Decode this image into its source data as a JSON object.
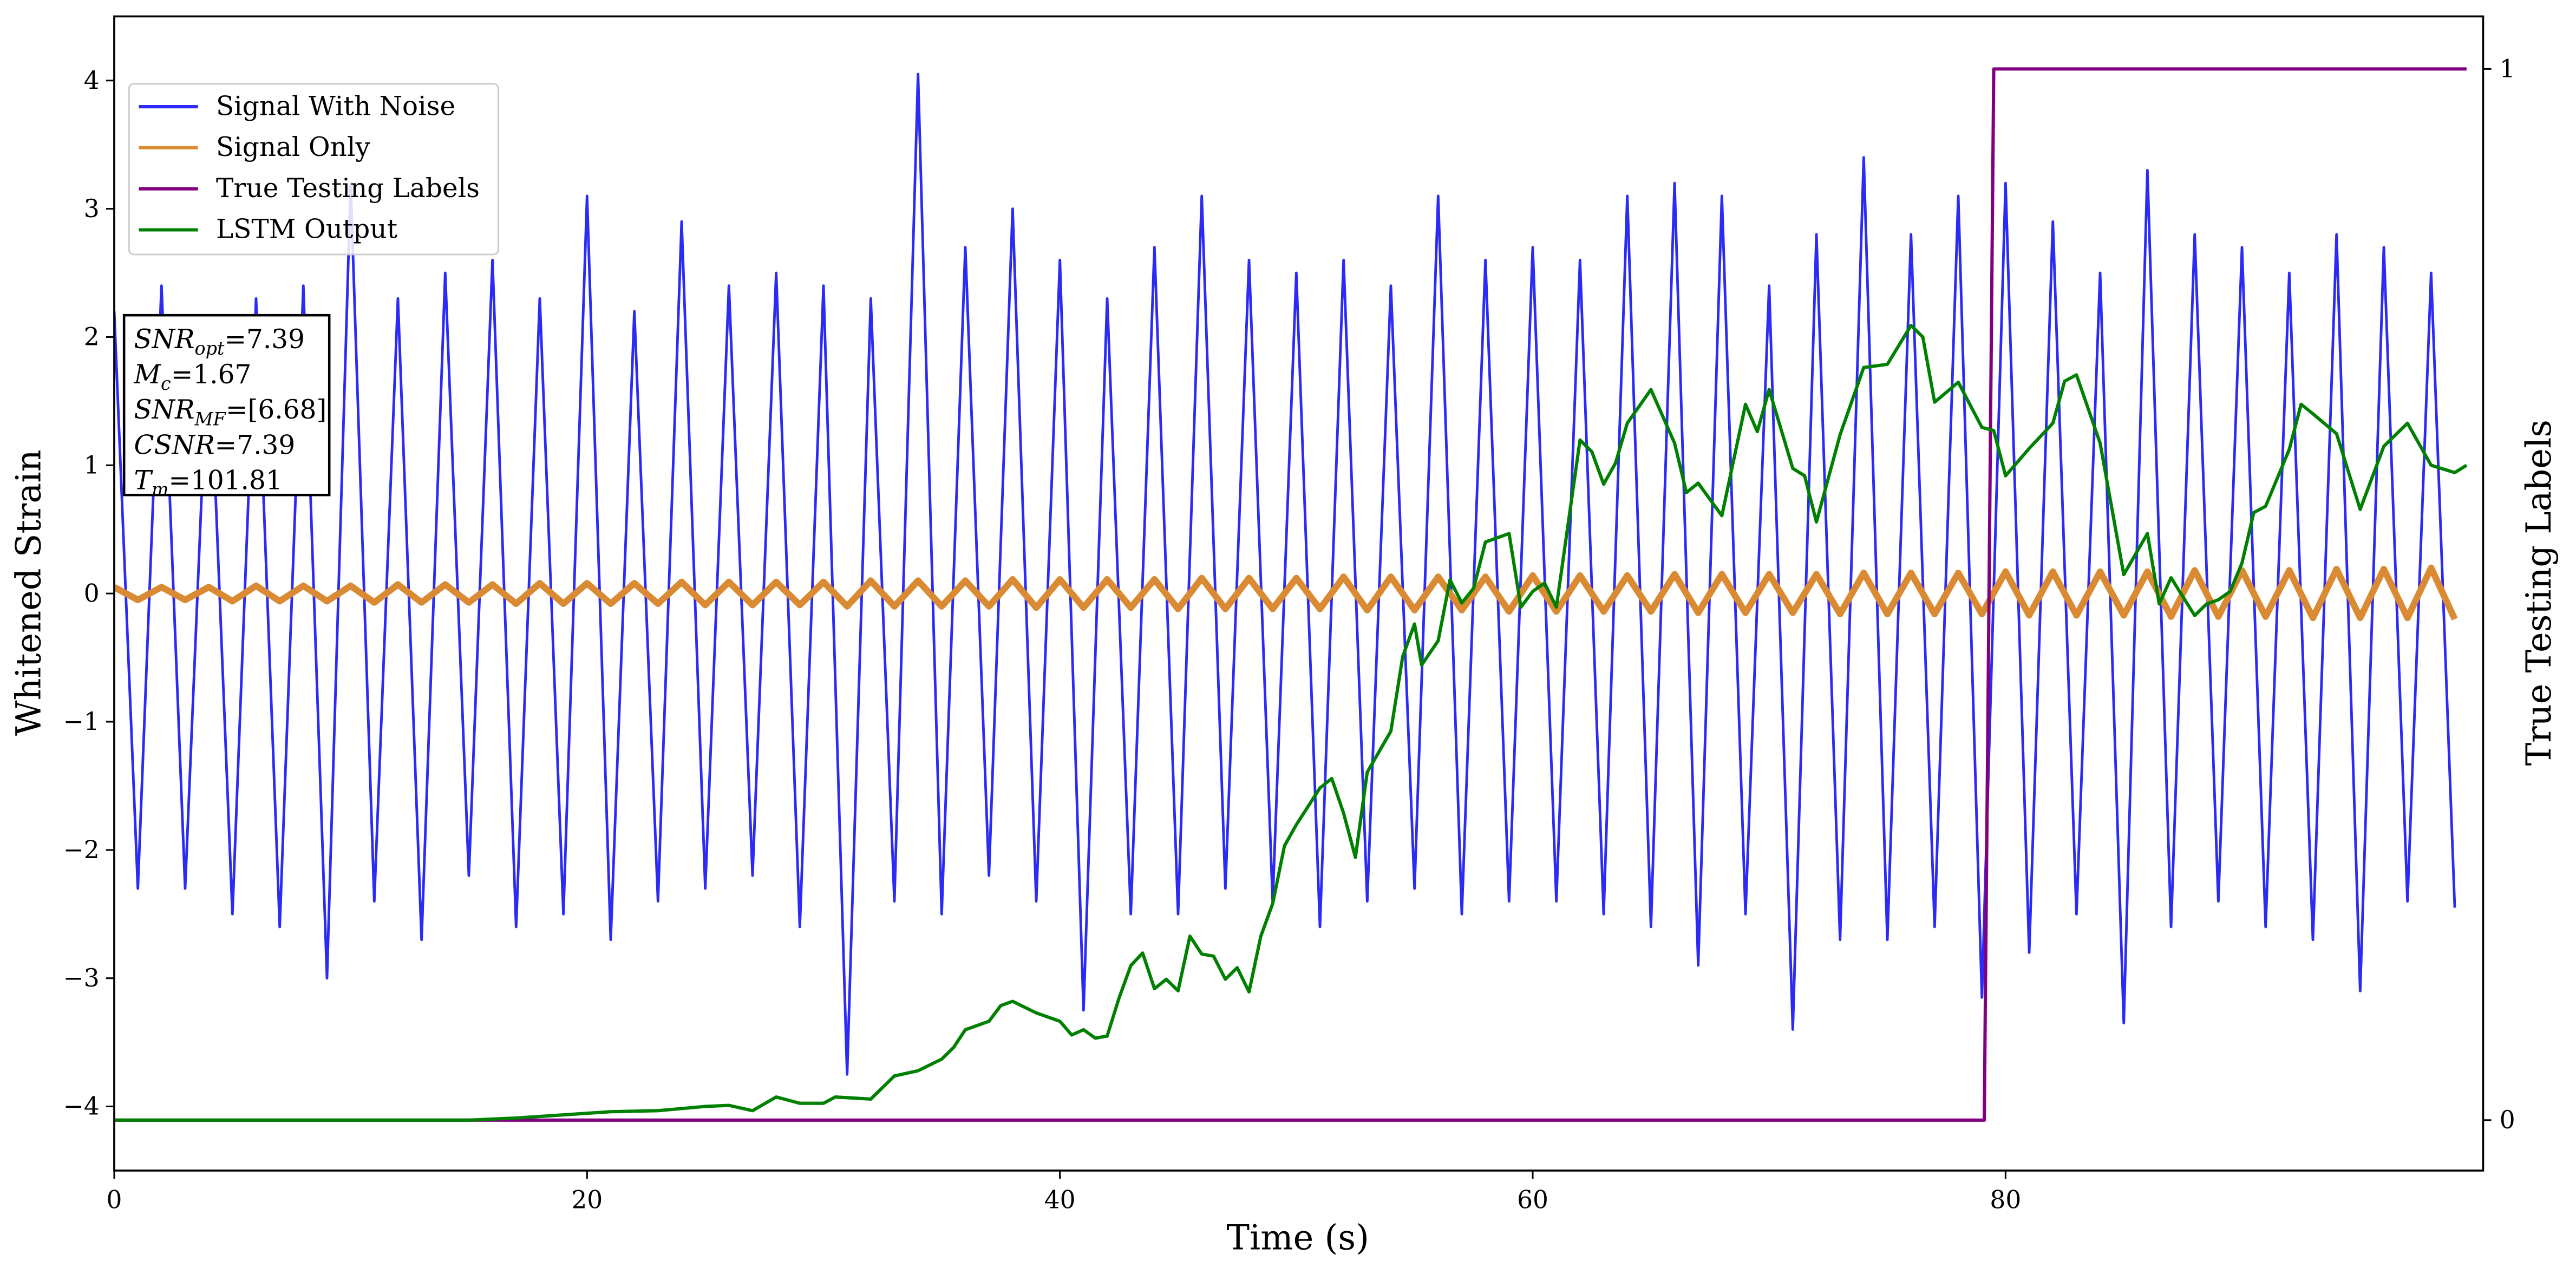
{
  "chart_data": {
    "type": "line",
    "xlabel": "Time (s)",
    "ylabel": "Whitened Strain",
    "y2label": "True Testing Labels",
    "xlim": [
      0,
      100.2
    ],
    "ylim": [
      -4.5,
      4.5
    ],
    "y2lim": [
      -0.048,
      1.05
    ],
    "xticks": [
      0,
      20,
      40,
      60,
      80
    ],
    "yticks": [
      -4,
      -3,
      -2,
      -1,
      0,
      1,
      2,
      3,
      4
    ],
    "y2ticks": [
      0,
      1
    ],
    "legend": "upper-left",
    "grid": false,
    "series": [
      {
        "name": "Signal With Noise",
        "color": "#2b2bf5",
        "x": [
          0,
          1,
          2,
          3,
          4,
          5,
          6,
          7,
          8,
          9,
          10,
          11,
          12,
          13,
          14,
          15,
          16,
          17,
          18,
          19,
          20,
          21,
          22,
          23,
          24,
          25,
          26,
          27,
          28,
          29,
          30,
          31,
          32,
          33,
          34,
          35,
          36,
          37,
          38,
          39,
          40,
          41,
          42,
          43,
          44,
          45,
          46,
          47,
          48,
          49,
          50,
          51,
          52,
          53,
          54,
          55,
          56,
          57,
          58,
          59,
          60,
          61,
          62,
          63,
          64,
          65,
          66,
          67,
          68,
          69,
          70,
          71,
          72,
          73,
          74,
          75,
          76,
          77,
          78,
          79,
          80,
          81,
          82,
          83,
          84,
          85,
          86,
          87,
          88,
          89,
          90,
          91,
          92,
          93,
          94,
          95,
          96,
          97,
          98,
          99
        ],
        "values": [
          2.2,
          -2.3,
          2.4,
          -2.3,
          2.1,
          -2.5,
          2.3,
          -2.6,
          2.4,
          -3.0,
          3.2,
          -2.4,
          2.3,
          -2.7,
          2.5,
          -2.2,
          2.6,
          -2.6,
          2.3,
          -2.5,
          3.1,
          -2.7,
          2.2,
          -2.4,
          2.9,
          -2.3,
          2.4,
          -2.2,
          2.5,
          -2.6,
          2.4,
          -3.75,
          2.3,
          -2.4,
          4.05,
          -2.5,
          2.7,
          -2.2,
          3.0,
          -2.4,
          2.6,
          -3.25,
          2.3,
          -2.5,
          2.7,
          -2.5,
          3.1,
          -2.3,
          2.6,
          -2.4,
          2.5,
          -2.6,
          2.6,
          -2.4,
          2.4,
          -2.3,
          3.1,
          -2.5,
          2.6,
          -2.4,
          2.7,
          -2.4,
          2.6,
          -2.5,
          3.1,
          -2.6,
          3.2,
          -2.9,
          3.1,
          -2.5,
          2.4,
          -3.4,
          2.8,
          -2.7,
          3.4,
          -2.7,
          2.8,
          -2.6,
          3.1,
          -3.15,
          3.2,
          -2.8,
          2.9,
          -2.5,
          2.5,
          -3.35,
          3.3,
          -2.6,
          2.8,
          -2.4,
          2.7,
          -2.6,
          2.5,
          -2.7,
          2.8,
          -3.1,
          2.7,
          -2.4,
          2.5,
          -2.45
        ]
      },
      {
        "name": "Signal Only",
        "color": "#d98a33",
        "x": [
          0,
          1,
          2,
          3,
          4,
          5,
          6,
          7,
          8,
          9,
          10,
          11,
          12,
          13,
          14,
          15,
          16,
          17,
          18,
          19,
          20,
          21,
          22,
          23,
          24,
          25,
          26,
          27,
          28,
          29,
          30,
          31,
          32,
          33,
          34,
          35,
          36,
          37,
          38,
          39,
          40,
          41,
          42,
          43,
          44,
          45,
          46,
          47,
          48,
          49,
          50,
          51,
          52,
          53,
          54,
          55,
          56,
          57,
          58,
          59,
          60,
          61,
          62,
          63,
          64,
          65,
          66,
          67,
          68,
          69,
          70,
          71,
          72,
          73,
          74,
          75,
          76,
          77,
          78,
          79,
          80,
          81,
          82,
          83,
          84,
          85,
          86,
          87,
          88,
          89,
          90,
          91,
          92,
          93,
          94,
          95,
          96,
          97,
          98,
          99
        ],
        "values": [
          0.05,
          -0.05,
          0.05,
          -0.05,
          0.05,
          -0.06,
          0.06,
          -0.06,
          0.06,
          -0.06,
          0.06,
          -0.07,
          0.07,
          -0.07,
          0.07,
          -0.07,
          0.07,
          -0.08,
          0.08,
          -0.08,
          0.08,
          -0.08,
          0.08,
          -0.08,
          0.09,
          -0.09,
          0.09,
          -0.09,
          0.09,
          -0.09,
          0.09,
          -0.1,
          0.1,
          -0.1,
          0.1,
          -0.1,
          0.1,
          -0.1,
          0.11,
          -0.11,
          0.11,
          -0.11,
          0.11,
          -0.11,
          0.11,
          -0.12,
          0.12,
          -0.12,
          0.12,
          -0.12,
          0.12,
          -0.12,
          0.13,
          -0.13,
          0.13,
          -0.13,
          0.13,
          -0.13,
          0.13,
          -0.14,
          0.14,
          -0.14,
          0.14,
          -0.14,
          0.14,
          -0.14,
          0.15,
          -0.15,
          0.15,
          -0.15,
          0.15,
          -0.15,
          0.15,
          -0.16,
          0.16,
          -0.16,
          0.16,
          -0.16,
          0.16,
          -0.16,
          0.17,
          -0.17,
          0.17,
          -0.17,
          0.17,
          -0.17,
          0.17,
          -0.18,
          0.18,
          -0.18,
          0.18,
          -0.18,
          0.18,
          -0.19,
          0.19,
          -0.19,
          0.19,
          -0.19,
          0.2,
          -0.2
        ]
      },
      {
        "name": "True Testing Labels",
        "color": "#800080",
        "axis": "y2",
        "x": [
          0,
          79.1,
          79.5,
          99.5
        ],
        "values": [
          0,
          0,
          1,
          1
        ]
      },
      {
        "name": "LSTM Output",
        "color": "#008000",
        "axis": "y2",
        "x": [
          0,
          15,
          17,
          19,
          21,
          23,
          25,
          26,
          27,
          28,
          29,
          30,
          30.5,
          32,
          33,
          34,
          35,
          35.5,
          36,
          37,
          37.5,
          38,
          39,
          40,
          40.5,
          41,
          41.5,
          42,
          42.5,
          43,
          43.5,
          44,
          44.5,
          45,
          45.5,
          46,
          46.5,
          47,
          47.5,
          48,
          48.5,
          49,
          49.5,
          50,
          51,
          51.5,
          52,
          52.5,
          53,
          54,
          54.5,
          55,
          55.3,
          56,
          56.5,
          57,
          57.5,
          58,
          59,
          59.5,
          60,
          60.5,
          61,
          62,
          62.5,
          63,
          63.5,
          64,
          65,
          66,
          66.5,
          67,
          68,
          69,
          69.5,
          70,
          71,
          71.5,
          72,
          73,
          74,
          75,
          76,
          76.5,
          77,
          78,
          79,
          79.5,
          80,
          81,
          82,
          82.5,
          83,
          84,
          85,
          86,
          86.5,
          87,
          88,
          88.5,
          89,
          89.5,
          90,
          90.5,
          91,
          92,
          92.5,
          93,
          94,
          95,
          96,
          97,
          98,
          99,
          99.5
        ],
        "values": [
          0,
          0,
          0.002,
          0.005,
          0.008,
          0.009,
          0.013,
          0.014,
          0.009,
          0.022,
          0.016,
          0.016,
          0.022,
          0.02,
          0.042,
          0.047,
          0.058,
          0.069,
          0.086,
          0.094,
          0.109,
          0.113,
          0.102,
          0.094,
          0.081,
          0.086,
          0.078,
          0.08,
          0.116,
          0.147,
          0.159,
          0.125,
          0.134,
          0.123,
          0.175,
          0.158,
          0.156,
          0.134,
          0.145,
          0.122,
          0.175,
          0.206,
          0.261,
          0.281,
          0.316,
          0.325,
          0.292,
          0.25,
          0.331,
          0.37,
          0.441,
          0.472,
          0.433,
          0.456,
          0.514,
          0.492,
          0.506,
          0.55,
          0.558,
          0.488,
          0.503,
          0.511,
          0.488,
          0.647,
          0.636,
          0.605,
          0.625,
          0.663,
          0.695,
          0.644,
          0.597,
          0.606,
          0.575,
          0.681,
          0.655,
          0.695,
          0.62,
          0.613,
          0.569,
          0.652,
          0.716,
          0.719,
          0.756,
          0.745,
          0.683,
          0.702,
          0.659,
          0.656,
          0.613,
          0.639,
          0.663,
          0.703,
          0.709,
          0.644,
          0.519,
          0.558,
          0.491,
          0.516,
          0.48,
          0.491,
          0.495,
          0.503,
          0.53,
          0.578,
          0.584,
          0.638,
          0.681,
          0.672,
          0.653,
          0.581,
          0.641,
          0.663,
          0.623,
          0.616,
          0.623
        ]
      }
    ],
    "annotations": [
      {
        "main": "SNR",
        "sub": "opt",
        "rest": "=7.39"
      },
      {
        "main": "M",
        "sub": "c",
        "rest": "=1.67"
      },
      {
        "main": "SNR",
        "sub": "MF",
        "rest": "=[6.68]"
      },
      {
        "main": "CSNR",
        "rest": "=7.39"
      },
      {
        "main": "T",
        "sub": "m",
        "rest": "=101.81"
      }
    ]
  }
}
